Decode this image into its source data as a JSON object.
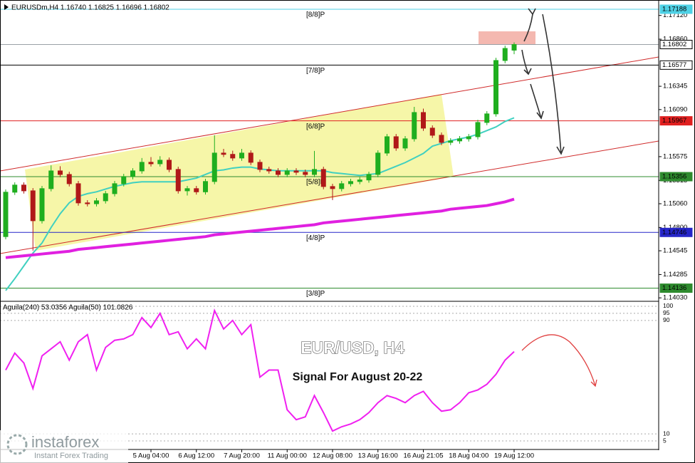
{
  "header": "EURUSDm,H4  1.16740 1.16825 1.16696 1.16802",
  "annotations": {
    "title": "EUR/USD, H4",
    "subtitle": "Signal For August 20-22"
  },
  "watermark": {
    "brand": "instaforex",
    "tagline": "Instant Forex Trading"
  },
  "chart_data": [
    {
      "type": "candlestick",
      "categories": [
        null,
        null,
        null,
        null,
        null,
        null,
        null,
        null,
        null,
        null,
        null,
        null,
        null,
        null,
        null,
        null,
        "5 Aug 04:00",
        null,
        null,
        null,
        null,
        "6 Aug 12:00",
        null,
        null,
        null,
        null,
        "7 Aug 20:00",
        null,
        null,
        null,
        null,
        "11 Aug 00:00",
        null,
        null,
        null,
        null,
        "12 Aug 08:00",
        null,
        null,
        null,
        null,
        "13 Aug 16:00",
        null,
        null,
        null,
        null,
        "16 Aug 21:05",
        null,
        null,
        null,
        null,
        "18 Aug 04:00",
        null,
        null,
        null,
        null,
        "19 Aug 12:00"
      ],
      "open": [
        1.147,
        1.15186,
        1.15264,
        1.15201,
        1.14874,
        1.15225,
        1.15419,
        1.1538,
        1.15279,
        1.15069,
        1.1506,
        1.15092,
        1.1517,
        1.15279,
        1.15357,
        1.15419,
        1.15513,
        1.15497,
        1.15536,
        1.15435,
        1.15201,
        1.15225,
        1.1519,
        1.15303,
        1.15614,
        1.156,
        1.1556,
        1.15614,
        1.15513,
        1.15435,
        1.15419,
        1.1538,
        1.15419,
        1.15404,
        1.1538,
        1.15435,
        1.15248,
        1.15225,
        1.15279,
        1.15303,
        1.1532,
        1.1538,
        1.15614,
        1.15793,
        1.15669,
        1.1577,
        1.16058,
        1.15887,
        1.15809,
        1.15731,
        1.15747,
        1.1577,
        1.15793,
        1.15949,
        1.16043,
        1.16627,
        1.1674
      ],
      "high": [
        1.15216,
        1.15294,
        1.15294,
        1.15231,
        1.15255,
        1.1548,
        1.1547,
        1.1541,
        1.15309,
        1.15099,
        1.15122,
        1.152,
        1.15309,
        1.15387,
        1.15449,
        1.1556,
        1.1557,
        1.1558,
        1.15566,
        1.15465,
        1.15255,
        1.15255,
        1.15333,
        1.15809,
        1.1566,
        1.1564,
        1.1566,
        1.15644,
        1.15543,
        1.15465,
        1.15449,
        1.15449,
        1.15449,
        1.15434,
        1.15638,
        1.15465,
        1.15278,
        1.15309,
        1.15333,
        1.1535,
        1.1541,
        1.15644,
        1.15823,
        1.15823,
        1.158,
        1.1612,
        1.161,
        1.15917,
        1.15839,
        1.15777,
        1.158,
        1.15823,
        1.15979,
        1.16073,
        1.16657,
        1.16789,
        1.16825
      ],
      "low": [
        1.1467,
        1.15156,
        1.15171,
        1.14547,
        1.14844,
        1.15195,
        1.1535,
        1.15249,
        1.15039,
        1.1503,
        1.1503,
        1.15062,
        1.1514,
        1.15249,
        1.15327,
        1.15389,
        1.15467,
        1.15467,
        1.15405,
        1.15171,
        1.1515,
        1.1516,
        1.1516,
        1.15273,
        1.1557,
        1.1553,
        1.1553,
        1.15483,
        1.15405,
        1.15389,
        1.1535,
        1.1535,
        1.15374,
        1.1535,
        1.1535,
        1.15218,
        1.151,
        1.15195,
        1.15249,
        1.15273,
        1.1529,
        1.1535,
        1.15584,
        1.15639,
        1.15639,
        1.1574,
        1.15857,
        1.15779,
        1.15701,
        1.15701,
        1.15717,
        1.1574,
        1.15763,
        1.15919,
        1.16013,
        1.16597,
        1.16696
      ],
      "close": [
        1.15186,
        1.15264,
        1.15201,
        1.14874,
        1.15225,
        1.15419,
        1.1538,
        1.15279,
        1.15069,
        1.1506,
        1.15092,
        1.1517,
        1.15279,
        1.15357,
        1.15419,
        1.15513,
        1.15497,
        1.15536,
        1.15435,
        1.15201,
        1.15225,
        1.1519,
        1.15303,
        1.15614,
        1.156,
        1.1556,
        1.15614,
        1.15513,
        1.15435,
        1.15419,
        1.1538,
        1.15419,
        1.15404,
        1.1538,
        1.15435,
        1.15248,
        1.15225,
        1.15279,
        1.15303,
        1.1532,
        1.1538,
        1.15614,
        1.15793,
        1.15669,
        1.1577,
        1.16058,
        1.15887,
        1.15809,
        1.15731,
        1.15747,
        1.1577,
        1.15793,
        1.15949,
        1.16043,
        1.16627,
        1.16759,
        1.16802
      ],
      "up_color": "#1fae1f",
      "down_color": "#b01818",
      "moving_averages": [
        {
          "color": "#40d0c0",
          "values": [
            1.1411,
            1.1424,
            1.1438,
            1.1452,
            1.1463,
            1.148,
            1.1495,
            1.1507,
            1.1514,
            1.1517,
            1.1519,
            1.1522,
            1.1525,
            1.1527,
            1.1529,
            1.153,
            1.153,
            1.153,
            1.153,
            1.153,
            1.1532,
            1.1534,
            1.1538,
            1.1542,
            1.1543,
            1.1545,
            1.1546,
            1.1546,
            1.1544,
            1.1543,
            1.1542,
            1.1542,
            1.1542,
            1.1542,
            1.1542,
            1.1542,
            1.154,
            1.1539,
            1.1538,
            1.1537,
            1.1538,
            1.1539,
            1.1543,
            1.1547,
            1.1551,
            1.1556,
            1.1561,
            1.1569,
            1.1572,
            1.1575,
            1.1577,
            1.1579,
            1.1582,
            1.1586,
            1.159,
            1.1596,
            1.16
          ]
        },
        {
          "color": "#e020e0",
          "values": [
            1.1447,
            1.1448,
            1.1449,
            1.145,
            1.1451,
            1.1452,
            1.1453,
            1.1454,
            1.1456,
            1.1457,
            1.1458,
            1.1459,
            1.146,
            1.1461,
            1.1462,
            1.1463,
            1.1464,
            1.1465,
            1.1466,
            1.1467,
            1.1468,
            1.1469,
            1.147,
            1.1472,
            1.1473,
            1.1474,
            1.1475,
            1.1476,
            1.1477,
            1.1478,
            1.1479,
            1.148,
            1.1481,
            1.1482,
            1.1483,
            1.1485,
            1.1486,
            1.1487,
            1.1488,
            1.1489,
            1.149,
            1.1491,
            1.1492,
            1.1493,
            1.1494,
            1.1495,
            1.1496,
            1.1497,
            1.1498,
            1.15,
            1.1501,
            1.1502,
            1.1503,
            1.1504,
            1.1506,
            1.1508,
            1.1511
          ]
        }
      ],
      "levels": [
        {
          "name": "[8/8]P",
          "value": 1.17188,
          "color": "#4fd2e6"
        },
        {
          "name": "[7/8]P",
          "value": 1.16577,
          "color": "#000000"
        },
        {
          "name": "[6/8]P",
          "value": 1.15967,
          "color": "#e02020"
        },
        {
          "name": "[5/8]P",
          "value": 1.15356,
          "color": "#2e8b2e"
        },
        {
          "name": "[4/8]P",
          "value": 1.14746,
          "color": "#2626c8"
        },
        {
          "name": "[3/8]P",
          "value": 1.14136,
          "color": "#2e8b2e"
        }
      ],
      "ylim": [
        1.14,
        1.1725
      ],
      "yticks": [
        {
          "value": 1.1712,
          "label": "1.17120"
        },
        {
          "value": 1.1686,
          "label": "1.16860"
        },
        1.16345,
        {
          "value": 1.1609,
          "label": "1.16090"
        },
        1.15575,
        1.15315,
        {
          "value": 1.1506,
          "label": "1.15060"
        },
        {
          "value": 1.148,
          "label": "1.14800"
        },
        1.14545,
        1.14285,
        {
          "value": 1.1403,
          "label": "1.14030"
        }
      ]
    },
    {
      "type": "line",
      "title": "Aguila(240) 53.0356   Aguila(50) 101.0826",
      "series": [
        {
          "color": "#f020f0",
          "values": [
            55,
            67,
            60,
            42,
            65,
            70,
            75,
            62,
            75,
            80,
            55,
            71,
            76,
            77,
            80,
            92,
            85,
            95,
            80,
            82,
            70,
            77,
            70,
            97,
            84,
            90,
            80,
            87,
            50,
            55,
            55,
            27,
            20,
            22,
            37,
            25,
            12,
            15,
            17,
            20,
            25,
            32,
            37,
            35,
            32,
            37,
            40,
            32,
            26,
            27,
            32,
            39,
            41,
            45,
            52,
            62,
            68
          ]
        }
      ],
      "ylim": [
        0,
        102
      ],
      "yticks": [
        100,
        95,
        90,
        10,
        5
      ]
    }
  ]
}
